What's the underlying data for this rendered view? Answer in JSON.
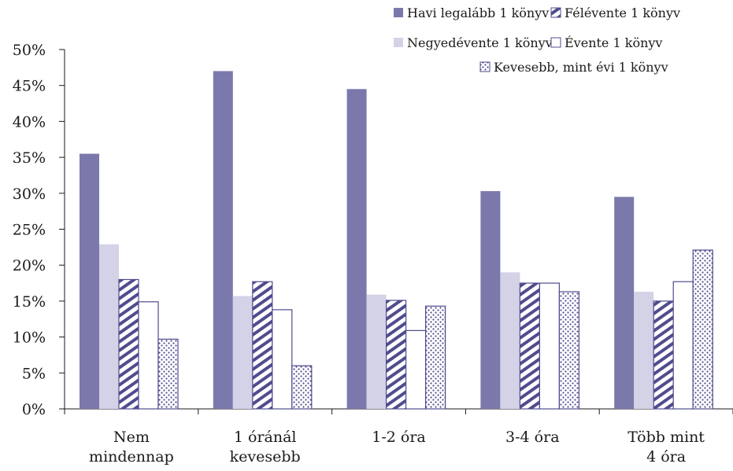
{
  "chart_data": {
    "type": "bar",
    "title": "",
    "xlabel": "",
    "ylabel": "",
    "ylim": [
      0,
      0.5
    ],
    "y_ticks": [
      "0%",
      "5%",
      "10%",
      "15%",
      "20%",
      "25%",
      "30%",
      "35%",
      "40%",
      "45%",
      "50%"
    ],
    "grid": false,
    "legend_position": "top-right",
    "categories": [
      [
        "Nem",
        "mindennap"
      ],
      [
        "1 óránál",
        "kevesebb"
      ],
      [
        "1-2 óra"
      ],
      [
        "3-4 óra"
      ],
      [
        "Több mint",
        "4 óra"
      ]
    ],
    "series": [
      {
        "name": "Havi legalább 1 könyv",
        "pattern": "solid",
        "color": "#7b78ac",
        "values": [
          0.355,
          0.47,
          0.445,
          0.303,
          0.295
        ]
      },
      {
        "name": "Negyedévente 1 könyv",
        "pattern": "light",
        "color": "#d3d2e6",
        "values": [
          0.229,
          0.157,
          0.159,
          0.19,
          0.163
        ]
      },
      {
        "name": "Félévente 1 könyv",
        "pattern": "diagonal",
        "color": "#4f4c8e",
        "values": [
          0.18,
          0.177,
          0.151,
          0.175,
          0.15
        ]
      },
      {
        "name": "Évente 1 könyv",
        "pattern": "outline",
        "color": "#4f4c8e",
        "values": [
          0.149,
          0.138,
          0.109,
          0.175,
          0.177
        ]
      },
      {
        "name": "Kevesebb, mint évi 1 könyv",
        "pattern": "dotted",
        "color": "#4f4c8e",
        "values": [
          0.097,
          0.06,
          0.143,
          0.163,
          0.221
        ]
      }
    ]
  }
}
